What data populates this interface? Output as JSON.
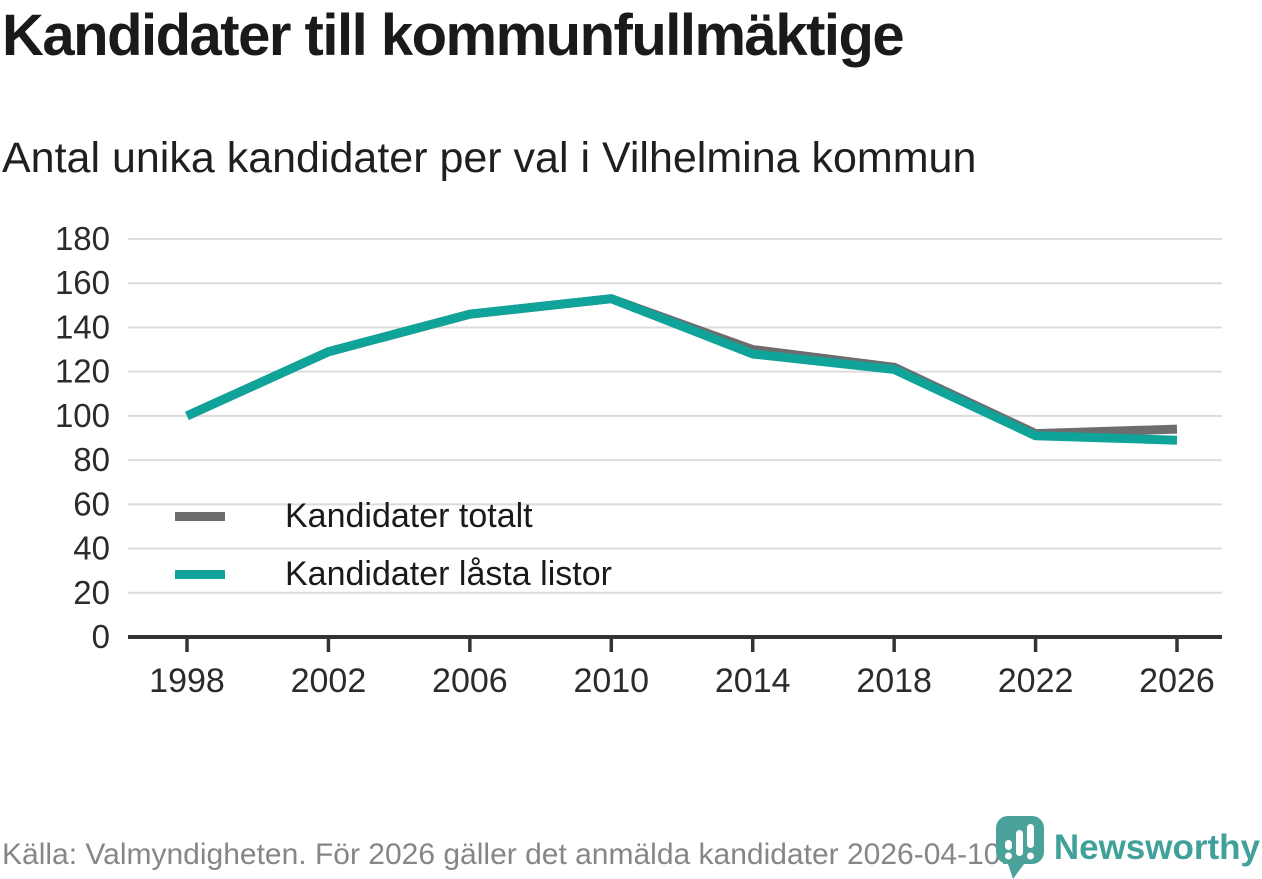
{
  "header": {
    "title": "Kandidater till kommunfullmäktige",
    "subtitle": "Antal unika kandidater per val i Vilhelmina kommun"
  },
  "legend": [
    {
      "label": "Kandidater totalt",
      "color": "#6d6d70"
    },
    {
      "label": "Kandidater låsta listor",
      "color": "#10a39a"
    }
  ],
  "footer": {
    "source": "Källa: Valmyndigheten. För 2026 gäller det anmälda kandidater 2026-04-10.",
    "brand": "Newsworthy",
    "brand_color": "#3fa199",
    "logo_color": "#4aa29b"
  },
  "chart_data": {
    "type": "line",
    "title": "Kandidater till kommunfullmäktige",
    "subtitle": "Antal unika kandidater per val i Vilhelmina kommun",
    "x": [
      1998,
      2002,
      2006,
      2010,
      2014,
      2018,
      2022,
      2026
    ],
    "x_tick_labels": [
      "1998",
      "2002",
      "2006",
      "2010",
      "2014",
      "2018",
      "2022",
      "2026"
    ],
    "series": [
      {
        "name": "Kandidater totalt",
        "color": "#6d6d70",
        "values": [
          100,
          129,
          146,
          153,
          130,
          122,
          92,
          94
        ]
      },
      {
        "name": "Kandidater låsta listor",
        "color": "#10a39a",
        "values": [
          100,
          129,
          146,
          153,
          128,
          121,
          91,
          89
        ]
      }
    ],
    "ylim": [
      0,
      180
    ],
    "ytick_step": 20,
    "y_tick_labels": [
      "0",
      "20",
      "40",
      "60",
      "80",
      "100",
      "120",
      "140",
      "160",
      "180"
    ],
    "grid": "horizontal",
    "legend_position": "inside-bottom-left",
    "colors": {
      "gridline": "#dcdcdc",
      "axis": "#333333",
      "tick_label": "#2b2b2b"
    }
  }
}
